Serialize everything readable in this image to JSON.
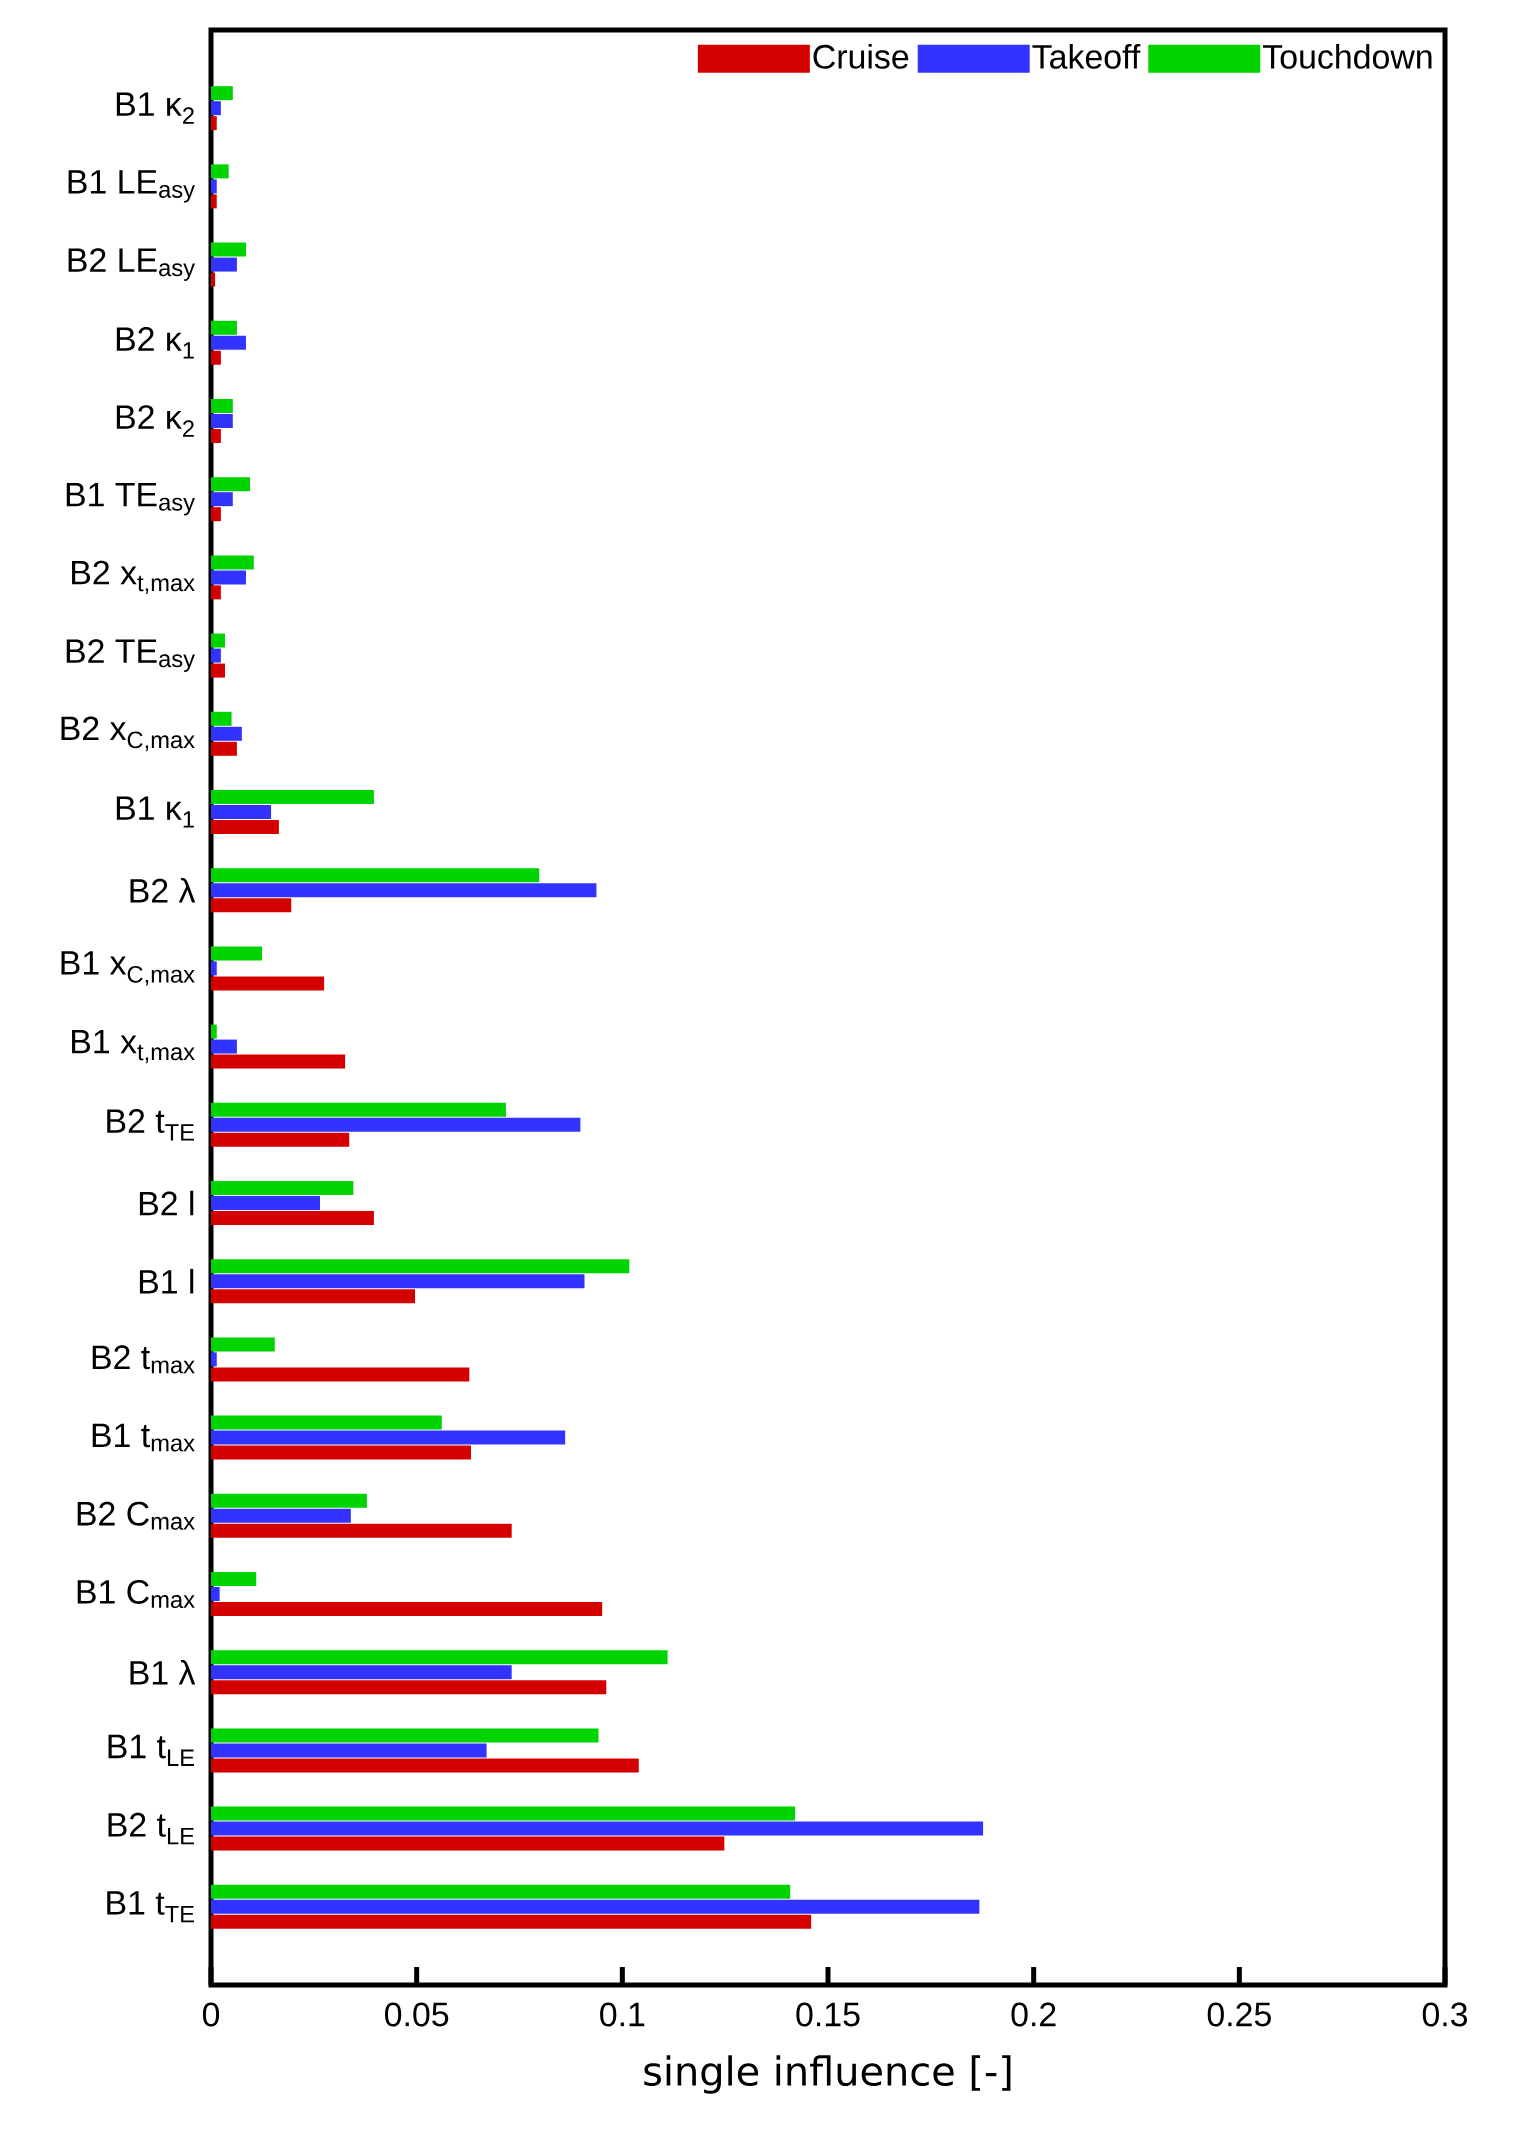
{
  "chart_data": {
    "type": "bar",
    "orientation": "horizontal",
    "xlabel": "single influence [-]",
    "legend": "top right",
    "categories": [
      "B1 κ$_{2}$",
      "B1 LE$_{asy}$",
      "B2 LE$_{asy}$",
      "B2 κ$_{1}$",
      "B2 κ$_{2}$",
      "B1 TE$_{asy}$",
      "B2 x$_{t,max}$",
      "B2 TE$_{asy}$",
      "B2 x$_{C,max}$",
      "B1 κ$_{1}$",
      "B2 λ",
      "B1 x$_{C,max}$",
      "B1 x$_{t,max}$",
      "B2 t$_{TE}$",
      "B2 l",
      "B1 l",
      "B2 t$_{max}$",
      "B1 t$_{max}$",
      "B2 C$_{max}$",
      "B1 C$_{max}$",
      "B1 λ",
      "B1 t$_{LE}$",
      "B2 t$_{LE}$",
      "B1 t$_{TE}$"
    ],
    "series": [
      {
        "name": "Cruise",
        "color": "#d40000",
        "values": [
          0.0014,
          0.0014,
          0.001,
          0.0024,
          0.0024,
          0.0024,
          0.0024,
          0.0034,
          0.0063,
          0.0165,
          0.0195,
          0.0275,
          0.0326,
          0.0336,
          0.0396,
          0.0496,
          0.0628,
          0.0632,
          0.0731,
          0.0951,
          0.0961,
          0.104,
          0.1248,
          0.1459
        ]
      },
      {
        "name": "Takeoff",
        "color": "#3333ff",
        "values": [
          0.0024,
          0.0014,
          0.0063,
          0.0085,
          0.0053,
          0.0053,
          0.0085,
          0.0024,
          0.0075,
          0.0146,
          0.0937,
          0.0014,
          0.0063,
          0.0898,
          0.0265,
          0.0908,
          0.0014,
          0.0861,
          0.034,
          0.0021,
          0.0731,
          0.067,
          0.1877,
          0.1868
        ]
      },
      {
        "name": "Touchdown",
        "color": "#00d400",
        "values": [
          0.0053,
          0.0043,
          0.0085,
          0.0063,
          0.0053,
          0.0095,
          0.0104,
          0.0034,
          0.005,
          0.0396,
          0.0798,
          0.0124,
          0.0014,
          0.0717,
          0.0346,
          0.1017,
          0.0155,
          0.0561,
          0.0379,
          0.011,
          0.111,
          0.0942,
          0.142,
          0.1408
        ]
      }
    ],
    "xlim": [
      0,
      0.3
    ],
    "xticks": [
      0,
      0.05,
      0.1,
      0.15,
      0.2,
      0.25,
      0.3
    ]
  }
}
